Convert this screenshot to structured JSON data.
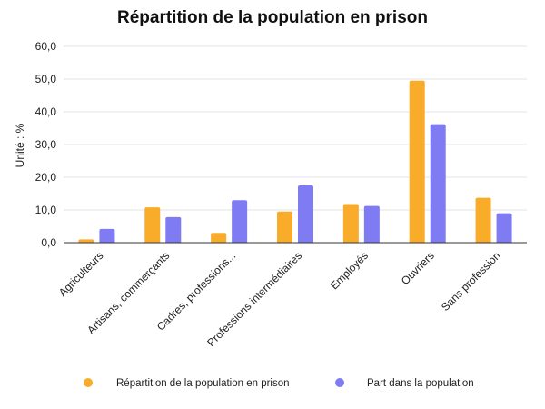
{
  "chart_data": {
    "type": "bar",
    "title": "Répartition de la population en prison",
    "ylabel": "Unité : %",
    "xlabel": "",
    "categories": [
      "Agriculteurs",
      "Artisans, commerçants",
      "Cadres, professions...",
      "Professions intermédiaires",
      "Employés",
      "Ouvriers",
      "Sans profession"
    ],
    "series": [
      {
        "name": "Répartition de la population en prison",
        "color": "#f9ab2a",
        "values": [
          1.0,
          10.8,
          3.0,
          9.5,
          11.8,
          49.5,
          13.7
        ]
      },
      {
        "name": "Part dans la population",
        "color": "#7f7cf3",
        "values": [
          4.2,
          7.8,
          13.0,
          17.5,
          11.2,
          36.2,
          9.0
        ]
      }
    ],
    "ylim": [
      0,
      60
    ],
    "yticks": [
      "0,0",
      "10,0",
      "20,0",
      "30,0",
      "40,0",
      "50,0",
      "60,0"
    ],
    "grid": true,
    "legend_position": "bottom"
  }
}
